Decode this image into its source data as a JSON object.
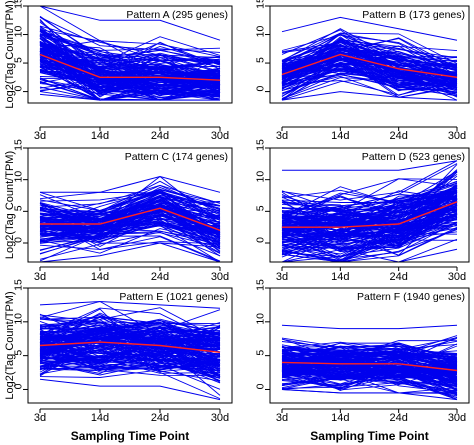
{
  "figure": {
    "ylabel": "Log2(Tag Count/TPM)",
    "xlabel": "Sampling Time Point"
  },
  "colors": {
    "gene_lines": "#0000ee",
    "mean_line": "#ff2222",
    "axes": "#000000"
  },
  "chart_data": [
    {
      "type": "line",
      "title": "Pattern A (295 genes)",
      "categories": [
        "3d",
        "14d",
        "24d",
        "30d"
      ],
      "ylim": [
        -2,
        15
      ],
      "yticks": [
        0,
        5,
        10,
        15
      ],
      "xlabel": "",
      "ylabel": "Log2(Tag Count/TPM)",
      "grid": false,
      "series": [
        {
          "role": "mean",
          "values": [
            6.5,
            2.5,
            2.5,
            2.0
          ]
        },
        {
          "role": "upper_envelope",
          "values": [
            15.0,
            12.5,
            12.5,
            9.0
          ]
        },
        {
          "role": "lower_envelope",
          "values": [
            -0.5,
            -1.5,
            -1.5,
            -1.5
          ]
        }
      ]
    },
    {
      "type": "line",
      "title": "Pattern B (173 genes)",
      "categories": [
        "3d",
        "14d",
        "24d",
        "30d"
      ],
      "ylim": [
        -2,
        15
      ],
      "yticks": [
        0,
        5,
        10,
        15
      ],
      "xlabel": "",
      "ylabel": "",
      "grid": false,
      "series": [
        {
          "role": "mean",
          "values": [
            3.0,
            6.5,
            4.0,
            2.5
          ]
        },
        {
          "role": "upper_envelope",
          "values": [
            10.5,
            13.0,
            11.0,
            9.0
          ]
        },
        {
          "role": "lower_envelope",
          "values": [
            -1.5,
            0.0,
            -1.0,
            -1.5
          ]
        }
      ]
    },
    {
      "type": "line",
      "title": "Pattern C (174 genes)",
      "categories": [
        "3d",
        "14d",
        "24d",
        "30d"
      ],
      "ylim": [
        -3,
        15
      ],
      "yticks": [
        0,
        5,
        10,
        15
      ],
      "xlabel": "",
      "ylabel": "Log2(Tag Count/TPM)",
      "grid": false,
      "series": [
        {
          "role": "mean",
          "values": [
            3.0,
            3.0,
            5.5,
            2.0
          ]
        },
        {
          "role": "upper_envelope",
          "values": [
            8.0,
            8.0,
            10.5,
            8.0
          ]
        },
        {
          "role": "lower_envelope",
          "values": [
            -3.0,
            -2.0,
            0.0,
            -3.0
          ]
        }
      ]
    },
    {
      "type": "line",
      "title": "Pattern D (523 genes)",
      "categories": [
        "3d",
        "14d",
        "24d",
        "30d"
      ],
      "ylim": [
        -3,
        15
      ],
      "yticks": [
        0,
        5,
        10,
        15
      ],
      "xlabel": "",
      "ylabel": "",
      "grid": false,
      "series": [
        {
          "role": "mean",
          "values": [
            2.5,
            2.5,
            3.0,
            6.5
          ]
        },
        {
          "role": "upper_envelope",
          "values": [
            11.5,
            11.5,
            11.5,
            13.0
          ]
        },
        {
          "role": "lower_envelope",
          "values": [
            -3.0,
            -3.0,
            -3.0,
            -1.0
          ]
        }
      ]
    },
    {
      "type": "line",
      "title": "Pattern E (1021 genes)",
      "categories": [
        "3d",
        "14d",
        "24d",
        "30d"
      ],
      "ylim": [
        -2,
        15
      ],
      "yticks": [
        0,
        5,
        10,
        15
      ],
      "xlabel": "Sampling Time Point",
      "ylabel": "Log2(Tag Count/TPM)",
      "grid": false,
      "series": [
        {
          "role": "mean",
          "values": [
            6.5,
            7.0,
            6.5,
            5.5
          ]
        },
        {
          "role": "upper_envelope",
          "values": [
            12.5,
            13.0,
            12.5,
            12.0
          ]
        },
        {
          "role": "lower_envelope",
          "values": [
            1.5,
            0.5,
            0.5,
            -1.5
          ]
        }
      ]
    },
    {
      "type": "line",
      "title": "Pattern F (1940 genes)",
      "categories": [
        "3d",
        "14d",
        "24d",
        "30d"
      ],
      "ylim": [
        -2,
        15
      ],
      "yticks": [
        0,
        5,
        10,
        15
      ],
      "xlabel": "Sampling Time Point",
      "ylabel": "",
      "grid": false,
      "series": [
        {
          "role": "mean",
          "values": [
            4.0,
            3.8,
            3.8,
            2.8
          ]
        },
        {
          "role": "upper_envelope",
          "values": [
            9.5,
            9.0,
            9.0,
            9.5
          ]
        },
        {
          "role": "lower_envelope",
          "values": [
            0.0,
            -0.5,
            -0.5,
            -1.5
          ]
        }
      ]
    }
  ]
}
